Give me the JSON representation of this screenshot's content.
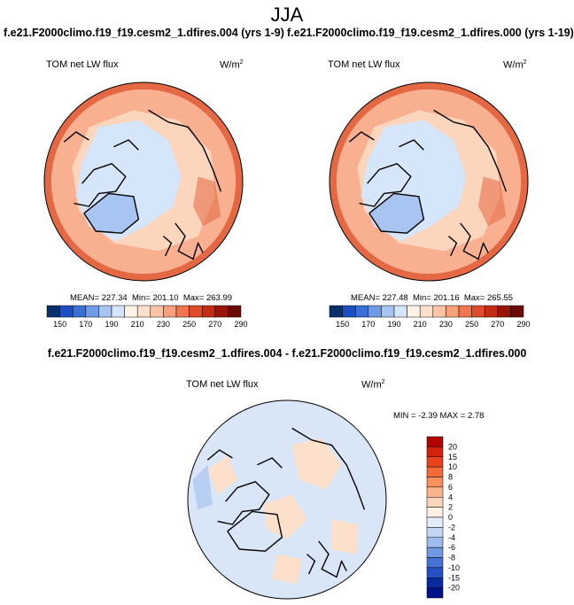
{
  "season": "JJA",
  "panels": [
    {
      "case": "f.e21.F2000climo.f19_f19.cesm2_1.dfires.004 (yrs 1-9)",
      "variable": "TOM net LW flux",
      "units": "W/m",
      "units_exp": "2",
      "stats": {
        "mean": "MEAN= 227.34",
        "min": "Min= 201.10",
        "max": "Max= 263.99"
      }
    },
    {
      "case": "f.e21.F2000climo.f19_f19.cesm2_1.dfires.000 (yrs 1-19)",
      "variable": "TOM net LW flux",
      "units": "W/m",
      "units_exp": "2",
      "stats": {
        "mean": "MEAN= 227.48",
        "min": "Min= 201.16",
        "max": "Max= 265.55"
      }
    }
  ],
  "difference": {
    "title": "f.e21.F2000climo.f19_f19.cesm2_1.dfires.004 - f.e21.F2000climo.f19_f19.cesm2_1.dfires.000",
    "variable": "TOM net LW flux",
    "units": "W/m",
    "units_exp": "2",
    "stats": "MIN =  -2.39 MAX =   2.78"
  },
  "colorbar_main": {
    "colors": [
      "#08306b",
      "#1c4fc0",
      "#3a6fd8",
      "#6f9be6",
      "#a8c4f0",
      "#d6e6fa",
      "#fff2e6",
      "#fde0cc",
      "#fbc4a6",
      "#f7a07c",
      "#ef7650",
      "#dd4d2c",
      "#c22d14",
      "#99150a",
      "#6b0a04"
    ],
    "labels": [
      "150",
      "170",
      "190",
      "210",
      "230",
      "250",
      "270",
      "290"
    ]
  },
  "colorbar_diff": {
    "colors": [
      "#b30000",
      "#d4200c",
      "#e8431c",
      "#f26a3a",
      "#f8905e",
      "#fbb48c",
      "#fcd6bc",
      "#fff0e2",
      "#e2ecfa",
      "#c2d6f4",
      "#9ebcee",
      "#7099e2",
      "#4672d6",
      "#2450c4",
      "#0a2aa0",
      "#00128a"
    ],
    "labels": [
      "20",
      "15",
      "10",
      "8",
      "6",
      "4",
      "2",
      "0",
      "-2",
      "-4",
      "-6",
      "-8",
      "-10",
      "-15",
      "-20"
    ]
  },
  "map_colors": {
    "ocean_warm": "#f8b090",
    "ring_hot": "#e46844",
    "mid": "#fcd6bc",
    "polar": "#d6e6fa",
    "ice": "#a8c4f0",
    "diff_base": "#d9e6f8",
    "diff_pos": "#fde0cc",
    "diff_neg": "#b8cef2",
    "coast": "#000000"
  }
}
